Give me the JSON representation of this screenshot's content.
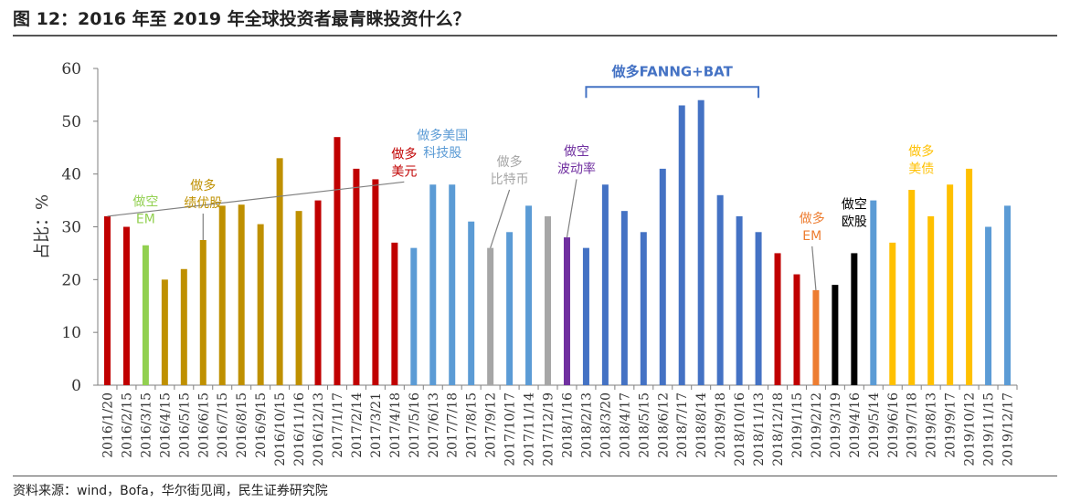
{
  "header": {
    "title": "图 12：2016 年至 2019 年全球投资者最青睐投资什么？"
  },
  "footer": {
    "source": "资料来源：wind，Bofa，华尔街见闻，民生证券研究院"
  },
  "colors": {
    "red": "#C00000",
    "green": "#92D050",
    "gold": "#BF9000",
    "lightblue": "#5B9BD5",
    "gray": "#A6A6A6",
    "purple": "#7030A0",
    "blue": "#4472C4",
    "orange": "#ED7D31",
    "black": "#000000",
    "yellow": "#FFC000"
  },
  "chart_data": {
    "type": "bar",
    "title": "",
    "xlabel": "",
    "ylabel": "占比：%",
    "ylim": [
      0,
      60
    ],
    "yticks": [
      0,
      10,
      20,
      30,
      40,
      50,
      60
    ],
    "grid": false,
    "categories": [
      "2016/1/20",
      "2016/2/15",
      "2016/3/15",
      "2016/4/15",
      "2016/5/15",
      "2016/6/15",
      "2016/7/15",
      "2016/8/15",
      "2016/9/15",
      "2016/10/15",
      "2016/11/16",
      "2016/12/13",
      "2017/1/17",
      "2017/2/14",
      "2017/3/21",
      "2017/4/18",
      "2017/5/16",
      "2017/6/13",
      "2017/7/18",
      "2017/8/15",
      "2017/9/12",
      "2017/10/17",
      "2017/11/14",
      "2017/12/19",
      "2018/1/16",
      "2018/2/13",
      "2018/3/20",
      "2018/4/17",
      "2018/5/15",
      "2018/6/12",
      "2018/7/17",
      "2018/8/14",
      "2018/9/18",
      "2018/10/16",
      "2018/11/13",
      "2018/12/18",
      "2019/1/15",
      "2019/2/12",
      "2019/3/19",
      "2019/4/16",
      "2019/5/14",
      "2019/6/16",
      "2019/7/18",
      "2019/8/13",
      "2019/9/17",
      "2019/10/12",
      "2019/11/15",
      "2019/12/17"
    ],
    "values": [
      32,
      30,
      26.5,
      20,
      22,
      27.5,
      34,
      34.2,
      30.5,
      43,
      33,
      35,
      47,
      41,
      39,
      27,
      26,
      38,
      38,
      31,
      26,
      29,
      34,
      32,
      28,
      26,
      38,
      33,
      29,
      41,
      53,
      54,
      36,
      32,
      29,
      25,
      21,
      18,
      19,
      25,
      35,
      27,
      37,
      32,
      38,
      41,
      30,
      34
    ],
    "colors": [
      "red",
      "red",
      "green",
      "gold",
      "gold",
      "gold",
      "gold",
      "gold",
      "gold",
      "gold",
      "gold",
      "red",
      "red",
      "red",
      "red",
      "red",
      "lightblue",
      "lightblue",
      "lightblue",
      "lightblue",
      "gray",
      "lightblue",
      "lightblue",
      "gray",
      "purple",
      "blue",
      "blue",
      "blue",
      "blue",
      "blue",
      "blue",
      "blue",
      "blue",
      "blue",
      "blue",
      "red",
      "red",
      "orange",
      "black",
      "black",
      "lightblue",
      "yellow",
      "yellow",
      "yellow",
      "yellow",
      "yellow",
      "lightblue",
      "lightblue"
    ],
    "annotations": [
      {
        "lines": [
          "做多",
          "美元"
        ],
        "color": "red",
        "target": 0,
        "text_x": 15.5,
        "text_y": 43,
        "arrow_to_y": 32
      },
      {
        "lines": [
          "做空",
          "EM"
        ],
        "color": "green",
        "target": 2,
        "text_x": 2,
        "text_y": 34,
        "arrow_to_y": null
      },
      {
        "lines": [
          "做多",
          "绩优股"
        ],
        "color": "gold",
        "target": 5,
        "text_x": 5,
        "text_y": 37,
        "arrow_to_y": 27.5
      },
      {
        "lines": [
          "做多美国",
          "科技股"
        ],
        "color": "lightblue",
        "target": 17,
        "text_x": 17.5,
        "text_y": 46.5,
        "arrow_to_y": null
      },
      {
        "lines": [
          "做多",
          "比特币"
        ],
        "color": "gray",
        "target": 20,
        "text_x": 21,
        "text_y": 41.5,
        "arrow_to_y": 26
      },
      {
        "lines": [
          "做空",
          "波动率"
        ],
        "color": "purple",
        "target": 24,
        "text_x": 24.5,
        "text_y": 43.5,
        "arrow_to_y": 28
      },
      {
        "lines": [
          "做多",
          "EM"
        ],
        "color": "orange",
        "target": 37,
        "text_x": 36.8,
        "text_y": 30.8,
        "arrow_to_y": 18
      },
      {
        "lines": [
          "做空",
          "欧股"
        ],
        "color": "black",
        "target": 39,
        "text_x": 39,
        "text_y": 33.5,
        "arrow_to_y": null
      },
      {
        "lines": [
          "做多",
          "美债"
        ],
        "color": "yellow",
        "target": 42,
        "text_x": 42.5,
        "text_y": 43.5,
        "arrow_to_y": null
      }
    ],
    "brackets": [
      {
        "label": "做多FANNG+BAT",
        "color": "blue",
        "from": 25,
        "to": 34,
        "y": 56.5,
        "label_y": 58.5
      }
    ]
  }
}
